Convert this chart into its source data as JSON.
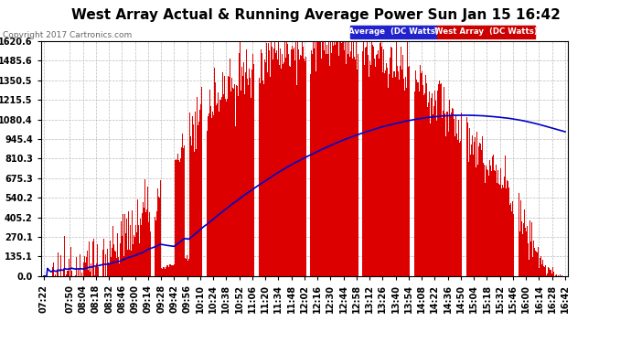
{
  "title": "West Array Actual & Running Average Power Sun Jan 15 16:42",
  "copyright": "Copyright 2017 Cartronics.com",
  "legend_avg": "Average  (DC Watts)",
  "legend_west": "West Array  (DC Watts)",
  "yticks": [
    0.0,
    135.1,
    270.1,
    405.2,
    540.2,
    675.3,
    810.3,
    945.4,
    1080.4,
    1215.5,
    1350.5,
    1485.6,
    1620.6
  ],
  "ymax": 1620.6,
  "ymin": 0.0,
  "background_color": "#ffffff",
  "plot_bg_color": "#ffffff",
  "grid_color": "#bbbbbb",
  "title_color": "#000000",
  "bar_color": "#dd0000",
  "avg_line_color": "#0000cc",
  "title_fontsize": 11,
  "tick_fontsize": 7,
  "copyright_fontsize": 6.5,
  "xtick_labels": [
    "07:22",
    "07:50",
    "08:04",
    "08:18",
    "08:32",
    "08:46",
    "09:00",
    "09:14",
    "09:28",
    "09:42",
    "09:56",
    "10:10",
    "10:24",
    "10:38",
    "10:52",
    "11:06",
    "11:20",
    "11:34",
    "11:48",
    "12:02",
    "12:16",
    "12:30",
    "12:44",
    "12:58",
    "13:12",
    "13:26",
    "13:40",
    "13:54",
    "14:08",
    "14:22",
    "14:36",
    "14:50",
    "15:04",
    "15:18",
    "15:32",
    "15:46",
    "16:00",
    "16:14",
    "16:28",
    "16:42"
  ]
}
